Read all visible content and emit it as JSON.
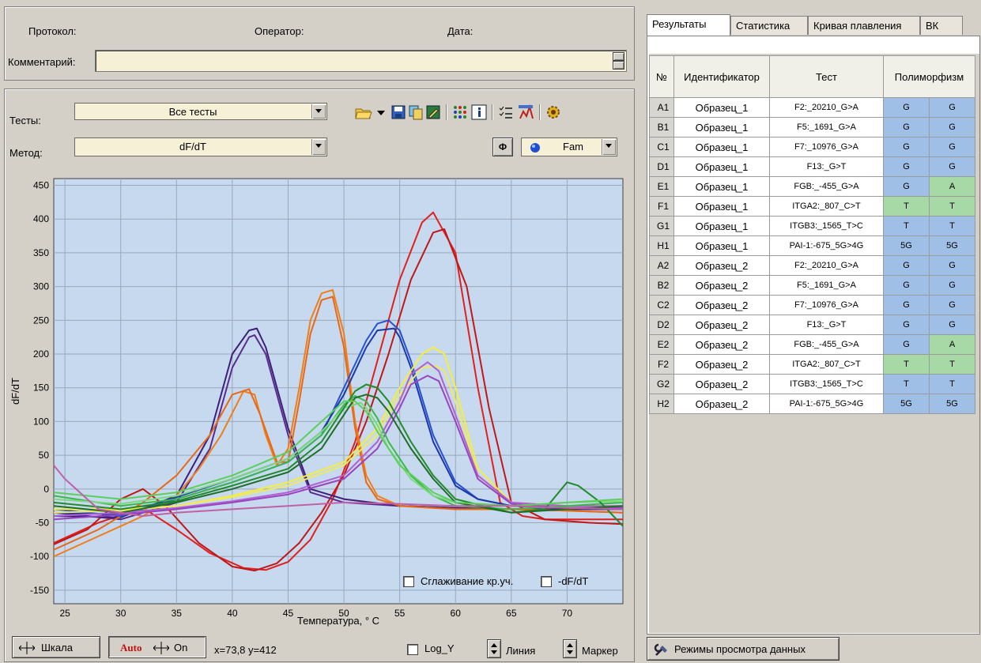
{
  "header": {
    "protocol_label": "Протокол:",
    "operator_label": "Оператор:",
    "date_label": "Дата:",
    "comment_label": "Комментарий:"
  },
  "controls": {
    "tests_label": "Тесты:",
    "tests_value": "Все тесты",
    "method_label": "Метод:",
    "method_value": "dF/dT",
    "phi_label": "Ф",
    "channel_value": "Fam"
  },
  "toolbar_icons": [
    "open-folder-icon",
    "dropdown-arrow-icon",
    "save-icon",
    "copy-icon",
    "edit-icon",
    "grid-dots-icon",
    "info-icon",
    "checklist-icon",
    "report-icon",
    "settings-gear-icon"
  ],
  "chart_controls": {
    "smoothing_label": "Сглаживание кр.уч.",
    "neg_df_label": "-dF/dT",
    "log_y_label": "Log_Y",
    "scale_button": "Шкала",
    "auto_button": "Auto",
    "auto_on": "On",
    "coords_readout": "x=73,8 y=412",
    "line_label": "Линия",
    "marker_label": "Маркер"
  },
  "tabs": [
    {
      "label": "Результаты",
      "active": true
    },
    {
      "label": "Статистика",
      "active": false
    },
    {
      "label": "Кривая плавления",
      "active": false
    },
    {
      "label": "ВК",
      "active": false
    }
  ],
  "table": {
    "headers": [
      "№",
      "Идентификатор",
      "Тест",
      "Полиморфизм"
    ],
    "rows": [
      {
        "well": "A1",
        "id": "Образец_1",
        "test": "F2:_20210_G>A",
        "a1": "G",
        "a2": "G",
        "c1": "#9fbfe6",
        "c2": "#9fbfe6"
      },
      {
        "well": "B1",
        "id": "Образец_1",
        "test": "F5:_1691_G>A",
        "a1": "G",
        "a2": "G",
        "c1": "#9fbfe6",
        "c2": "#9fbfe6"
      },
      {
        "well": "C1",
        "id": "Образец_1",
        "test": "F7:_10976_G>A",
        "a1": "G",
        "a2": "G",
        "c1": "#9fbfe6",
        "c2": "#9fbfe6"
      },
      {
        "well": "D1",
        "id": "Образец_1",
        "test": "F13:_G>T",
        "a1": "G",
        "a2": "G",
        "c1": "#9fbfe6",
        "c2": "#9fbfe6"
      },
      {
        "well": "E1",
        "id": "Образец_1",
        "test": "FGB:_-455_G>A",
        "a1": "G",
        "a2": "A",
        "c1": "#9fbfe6",
        "c2": "#a6d9a6"
      },
      {
        "well": "F1",
        "id": "Образец_1",
        "test": "ITGA2:_807_C>T",
        "a1": "T",
        "a2": "T",
        "c1": "#a6d9a6",
        "c2": "#a6d9a6"
      },
      {
        "well": "G1",
        "id": "Образец_1",
        "test": "ITGB3:_1565_T>C",
        "a1": "T",
        "a2": "T",
        "c1": "#9fbfe6",
        "c2": "#9fbfe6"
      },
      {
        "well": "H1",
        "id": "Образец_1",
        "test": "PAI-1:-675_5G>4G",
        "a1": "5G",
        "a2": "5G",
        "c1": "#9fbfe6",
        "c2": "#9fbfe6"
      },
      {
        "well": "A2",
        "id": "Образец_2",
        "test": "F2:_20210_G>A",
        "a1": "G",
        "a2": "G",
        "c1": "#9fbfe6",
        "c2": "#9fbfe6"
      },
      {
        "well": "B2",
        "id": "Образец_2",
        "test": "F5:_1691_G>A",
        "a1": "G",
        "a2": "G",
        "c1": "#9fbfe6",
        "c2": "#9fbfe6"
      },
      {
        "well": "C2",
        "id": "Образец_2",
        "test": "F7:_10976_G>A",
        "a1": "G",
        "a2": "G",
        "c1": "#9fbfe6",
        "c2": "#9fbfe6"
      },
      {
        "well": "D2",
        "id": "Образец_2",
        "test": "F13:_G>T",
        "a1": "G",
        "a2": "G",
        "c1": "#9fbfe6",
        "c2": "#9fbfe6"
      },
      {
        "well": "E2",
        "id": "Образец_2",
        "test": "FGB:_-455_G>A",
        "a1": "G",
        "a2": "A",
        "c1": "#9fbfe6",
        "c2": "#a6d9a6"
      },
      {
        "well": "F2",
        "id": "Образец_2",
        "test": "ITGA2:_807_C>T",
        "a1": "T",
        "a2": "T",
        "c1": "#a6d9a6",
        "c2": "#a6d9a6"
      },
      {
        "well": "G2",
        "id": "Образец_2",
        "test": "ITGB3:_1565_T>C",
        "a1": "T",
        "a2": "T",
        "c1": "#9fbfe6",
        "c2": "#9fbfe6"
      },
      {
        "well": "H2",
        "id": "Образец_2",
        "test": "PAI-1:-675_5G>4G",
        "a1": "5G",
        "a2": "5G",
        "c1": "#9fbfe6",
        "c2": "#9fbfe6"
      }
    ]
  },
  "bottom_right_button": "Режимы просмотра данных",
  "chart_data": {
    "type": "line",
    "xlabel": "Температура, ° C",
    "ylabel": "dF/dT",
    "xlim": [
      24,
      75
    ],
    "ylim": [
      -170,
      460
    ],
    "xticks": [
      25,
      30,
      35,
      40,
      45,
      50,
      55,
      60,
      65,
      70
    ],
    "yticks": [
      -150,
      -100,
      -50,
      0,
      50,
      100,
      150,
      200,
      250,
      300,
      350,
      400,
      450
    ],
    "grid": true,
    "background": "#c6d9ee",
    "series": [
      {
        "color": "#e0201c",
        "x": [
          24,
          28,
          32,
          35,
          38,
          41,
          43,
          45,
          47,
          49,
          51,
          53,
          55,
          57,
          58,
          60,
          62,
          64,
          66,
          68,
          70,
          72,
          75
        ],
        "y": [
          -80,
          -50,
          -28,
          -60,
          -95,
          -117,
          -120,
          -108,
          -75,
          -15,
          70,
          190,
          310,
          395,
          410,
          350,
          150,
          -20,
          -40,
          -45,
          -45,
          -45,
          -45
        ]
      },
      {
        "color": "#c01818",
        "x": [
          24,
          27,
          30,
          32,
          34,
          37,
          40,
          42,
          44,
          46,
          48,
          50,
          52,
          54,
          56,
          58,
          59,
          61,
          63,
          65,
          68,
          72,
          75
        ],
        "y": [
          -82,
          -60,
          -15,
          0,
          -25,
          -80,
          -115,
          -121,
          -110,
          -80,
          -35,
          20,
          100,
          200,
          310,
          380,
          385,
          300,
          120,
          -20,
          -45,
          -50,
          -52
        ]
      },
      {
        "color": "#5a2a8e",
        "x": [
          24,
          30,
          35,
          38,
          40,
          41.5,
          42,
          43,
          45,
          47,
          50,
          55,
          60,
          65,
          70,
          75
        ],
        "y": [
          -35,
          -45,
          -20,
          60,
          180,
          225,
          228,
          200,
          80,
          -5,
          -20,
          -25,
          -28,
          -30,
          -30,
          -30
        ]
      },
      {
        "color": "#3c1f78",
        "x": [
          24,
          30,
          35,
          38,
          40,
          41.5,
          42.2,
          43,
          45,
          47,
          50,
          55,
          60,
          65,
          70,
          75
        ],
        "y": [
          -40,
          -42,
          -10,
          80,
          200,
          235,
          238,
          210,
          90,
          0,
          -15,
          -25,
          -28,
          -30,
          -30,
          -30
        ]
      },
      {
        "color": "#f07e16",
        "x": [
          24,
          28,
          32,
          35,
          37,
          39,
          41,
          42,
          43,
          44,
          45,
          46,
          47,
          48,
          49,
          50,
          51,
          52,
          53,
          55,
          60,
          65,
          70,
          75
        ],
        "y": [
          -100,
          -70,
          -40,
          -10,
          30,
          80,
          145,
          140,
          80,
          35,
          60,
          150,
          250,
          290,
          295,
          230,
          100,
          20,
          -10,
          -25,
          -30,
          -30,
          -32,
          -35
        ]
      },
      {
        "color": "#e86818",
        "x": [
          24,
          28,
          32,
          35,
          38,
          40,
          41.5,
          42.5,
          44,
          45,
          46,
          47,
          48,
          49,
          50,
          51,
          52,
          53,
          55,
          60,
          65,
          70,
          75
        ],
        "y": [
          -90,
          -60,
          -20,
          20,
          80,
          140,
          148,
          110,
          40,
          40,
          130,
          230,
          280,
          285,
          210,
          90,
          10,
          -15,
          -25,
          -30,
          -30,
          -32,
          -35
        ]
      },
      {
        "color": "#2850d0",
        "x": [
          24,
          30,
          35,
          40,
          45,
          48,
          50,
          52,
          53,
          54,
          55,
          56,
          58,
          60,
          62,
          65,
          70,
          75
        ],
        "y": [
          -30,
          -40,
          -15,
          10,
          40,
          80,
          150,
          220,
          245,
          250,
          235,
          190,
          80,
          10,
          -15,
          -25,
          -28,
          -28
        ]
      },
      {
        "color": "#1c38a8",
        "x": [
          24,
          30,
          35,
          40,
          45,
          48,
          50,
          52,
          53,
          54.5,
          55,
          56,
          58,
          60,
          62,
          65,
          70,
          75
        ],
        "y": [
          -35,
          -38,
          -12,
          15,
          45,
          85,
          140,
          210,
          235,
          238,
          225,
          180,
          70,
          5,
          -15,
          -25,
          -28,
          -28
        ]
      },
      {
        "color": "#f5ee3a",
        "x": [
          24,
          30,
          35,
          40,
          45,
          50,
          53,
          55,
          57,
          58,
          59,
          60,
          62,
          65,
          70,
          75
        ],
        "y": [
          -30,
          -30,
          -25,
          -10,
          10,
          40,
          90,
          150,
          200,
          210,
          200,
          150,
          30,
          -20,
          -25,
          -25
        ]
      },
      {
        "color": "#eeea60",
        "x": [
          24,
          30,
          35,
          40,
          45,
          50,
          53,
          55,
          57,
          58.3,
          59,
          60,
          62,
          65,
          70,
          75
        ],
        "y": [
          -35,
          -32,
          -25,
          -12,
          5,
          35,
          80,
          140,
          180,
          182,
          175,
          130,
          20,
          -20,
          -25,
          -25
        ]
      },
      {
        "color": "#b060d0",
        "x": [
          24,
          30,
          35,
          40,
          45,
          50,
          53,
          55,
          56,
          57.5,
          58.5,
          60,
          62,
          65,
          70,
          75
        ],
        "y": [
          -40,
          -35,
          -28,
          -18,
          -5,
          20,
          70,
          130,
          170,
          188,
          175,
          110,
          20,
          -20,
          -25,
          -25
        ]
      },
      {
        "color": "#9a44c0",
        "x": [
          24,
          30,
          35,
          40,
          45,
          50,
          53,
          55,
          56,
          57.5,
          58.5,
          60,
          62,
          65,
          70,
          75
        ],
        "y": [
          -45,
          -38,
          -30,
          -20,
          -8,
          15,
          60,
          120,
          155,
          168,
          160,
          100,
          15,
          -22,
          -28,
          -28
        ]
      },
      {
        "color": "#3cb84a",
        "x": [
          24,
          30,
          35,
          40,
          45,
          48,
          50,
          51,
          52,
          53,
          54,
          56,
          58,
          60,
          65,
          70,
          75
        ],
        "y": [
          -10,
          -25,
          -15,
          10,
          40,
          80,
          125,
          138,
          130,
          105,
          70,
          20,
          -10,
          -25,
          -30,
          -25,
          -20
        ]
      },
      {
        "color": "#7ed87e",
        "x": [
          24,
          30,
          35,
          40,
          45,
          48,
          50,
          51.5,
          52,
          53,
          54,
          56,
          58,
          60,
          65,
          70,
          75
        ],
        "y": [
          -15,
          -22,
          -10,
          15,
          45,
          85,
          120,
          128,
          120,
          95,
          60,
          15,
          -10,
          -20,
          -25,
          -20,
          -18
        ]
      },
      {
        "color": "#208a2a",
        "x": [
          24,
          30,
          35,
          40,
          45,
          48,
          50,
          51,
          52,
          53,
          54,
          56,
          58,
          60,
          65,
          68,
          70,
          71,
          73,
          75
        ],
        "y": [
          -20,
          -30,
          -18,
          5,
          30,
          70,
          120,
          145,
          155,
          150,
          130,
          70,
          20,
          -15,
          -35,
          -30,
          10,
          5,
          -20,
          -55
        ]
      },
      {
        "color": "#1e6e28",
        "x": [
          24,
          30,
          35,
          40,
          45,
          48,
          50,
          51,
          52,
          53,
          54,
          56,
          58,
          60,
          65,
          70,
          75
        ],
        "y": [
          -25,
          -35,
          -20,
          0,
          25,
          60,
          110,
          135,
          140,
          135,
          115,
          60,
          15,
          -20,
          -35,
          -30,
          -25
        ]
      },
      {
        "color": "#5ad05a",
        "x": [
          24,
          30,
          35,
          40,
          45,
          48,
          50,
          51,
          52,
          53,
          55,
          58,
          60,
          65,
          70,
          75
        ],
        "y": [
          -5,
          -15,
          -5,
          20,
          55,
          100,
          130,
          130,
          115,
          85,
          35,
          -5,
          -20,
          -25,
          -20,
          -15
        ]
      },
      {
        "color": "#c060a8",
        "x": [
          24,
          25,
          28,
          32,
          35,
          40,
          45,
          50,
          55,
          60,
          65,
          70,
          75
        ],
        "y": [
          35,
          15,
          -30,
          -40,
          -35,
          -30,
          -25,
          -20,
          -22,
          -25,
          -25,
          -28,
          -30
        ]
      }
    ]
  }
}
